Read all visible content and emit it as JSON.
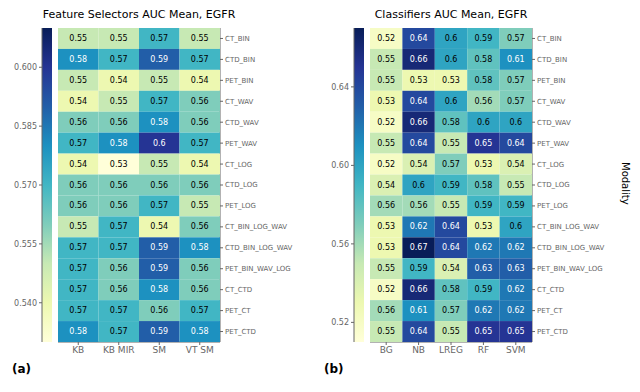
{
  "chart_data": [
    {
      "type": "heatmap",
      "title": "Feature Selectors AUC Mean, EGFR",
      "annotations": [
        "(a)"
      ],
      "x": [
        "KB",
        "KB MIR",
        "SM",
        "VT SM"
      ],
      "y": [
        "CT_BIN",
        "CTD_BIN",
        "PET_BIN",
        "CT_WAV",
        "CTD_WAV",
        "PET_WAV",
        "CT_LOG",
        "CTD_LOG",
        "PET_LOG",
        "CT_BIN_LOG_WAV",
        "CTD_BIN_LOG_WAV",
        "PET_BIN_WAV_LOG",
        "CT_CTD",
        "PET_CT",
        "PET_CTD"
      ],
      "values": [
        [
          0.55,
          0.55,
          0.57,
          0.55
        ],
        [
          0.58,
          0.57,
          0.59,
          0.57
        ],
        [
          0.55,
          0.54,
          0.55,
          0.54
        ],
        [
          0.54,
          0.55,
          0.57,
          0.56
        ],
        [
          0.56,
          0.56,
          0.58,
          0.56
        ],
        [
          0.57,
          0.58,
          0.6,
          0.57
        ],
        [
          0.54,
          0.53,
          0.55,
          0.54
        ],
        [
          0.56,
          0.56,
          0.56,
          0.56
        ],
        [
          0.56,
          0.56,
          0.57,
          0.55
        ],
        [
          0.55,
          0.57,
          0.54,
          0.56
        ],
        [
          0.57,
          0.57,
          0.59,
          0.58
        ],
        [
          0.57,
          0.56,
          0.59,
          0.56
        ],
        [
          0.57,
          0.56,
          0.58,
          0.56
        ],
        [
          0.57,
          0.57,
          0.56,
          0.57
        ],
        [
          0.58,
          0.57,
          0.59,
          0.58
        ]
      ],
      "color_range": [
        0.53,
        0.61
      ],
      "color_ticks": [
        {
          "value": 0.54,
          "label": "0.540"
        },
        {
          "value": 0.555,
          "label": "0.555"
        },
        {
          "value": 0.57,
          "label": "0.570"
        },
        {
          "value": 0.585,
          "label": "0.585"
        },
        {
          "value": 0.6,
          "label": "0.600"
        }
      ],
      "data_labels": true,
      "grid": false
    },
    {
      "type": "heatmap",
      "title": "Classifiers AUC Mean, EGFR",
      "annotations": [
        "(b)"
      ],
      "ylabel": "Modality",
      "x": [
        "BG",
        "NB",
        "LREG",
        "RF",
        "SVM"
      ],
      "y": [
        "CT_BIN",
        "CTD_BIN",
        "PET_BIN",
        "CT_WAV",
        "CTD_WAV",
        "PET_WAV",
        "CT_LOG",
        "CTD_LOG",
        "PET_LOG",
        "CT_BIN_LOG_WAV",
        "CTD_BIN_LOG_WAV",
        "PET_BIN_WAV_LOG",
        "CT_CTD",
        "PET_CT",
        "PET_CTD"
      ],
      "values": [
        [
          0.52,
          0.64,
          0.6,
          0.59,
          0.57
        ],
        [
          0.55,
          0.66,
          0.6,
          0.58,
          0.61
        ],
        [
          0.55,
          0.53,
          0.53,
          0.58,
          0.57
        ],
        [
          0.53,
          0.64,
          0.6,
          0.56,
          0.57
        ],
        [
          0.52,
          0.66,
          0.58,
          0.6,
          0.6
        ],
        [
          0.55,
          0.64,
          0.55,
          0.65,
          0.64
        ],
        [
          0.52,
          0.54,
          0.57,
          0.53,
          0.54
        ],
        [
          0.54,
          0.6,
          0.59,
          0.58,
          0.55
        ],
        [
          0.56,
          0.56,
          0.55,
          0.59,
          0.59
        ],
        [
          0.53,
          0.62,
          0.64,
          0.53,
          0.6
        ],
        [
          0.53,
          0.67,
          0.64,
          0.62,
          0.62
        ],
        [
          0.55,
          0.59,
          0.54,
          0.63,
          0.63
        ],
        [
          0.52,
          0.66,
          0.58,
          0.59,
          0.62
        ],
        [
          0.56,
          0.61,
          0.57,
          0.62,
          0.62
        ],
        [
          0.55,
          0.64,
          0.55,
          0.65,
          0.65
        ]
      ],
      "color_range": [
        0.51,
        0.67
      ],
      "color_ticks": [
        0.52,
        0.56,
        {
          "value": 0.6,
          "label": "0.60"
        },
        0.64
      ],
      "data_labels": true,
      "grid": false
    }
  ]
}
